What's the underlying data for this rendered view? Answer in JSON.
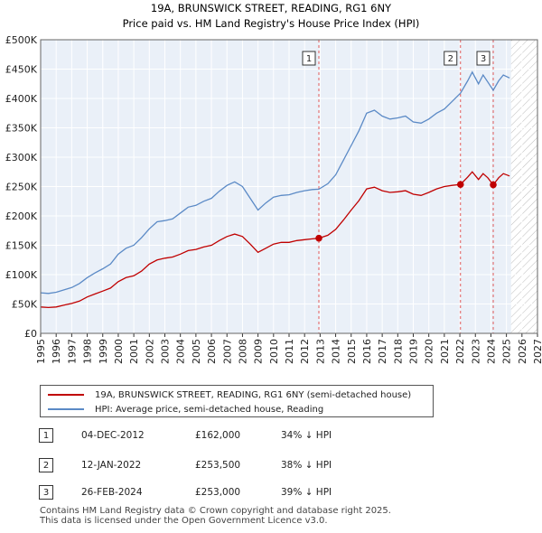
{
  "chart_data": {
    "type": "line",
    "title": "19A, BRUNSWICK STREET, READING, RG1 6NY",
    "subtitle": "Price paid vs. HM Land Registry's House Price Index (HPI)",
    "xlim": [
      1995,
      2027
    ],
    "ylim": [
      0,
      500000
    ],
    "x_ticks": [
      "1995",
      "1996",
      "1997",
      "1998",
      "1999",
      "2000",
      "2001",
      "2002",
      "2003",
      "2004",
      "2005",
      "2006",
      "2007",
      "2008",
      "2009",
      "2010",
      "2011",
      "2012",
      "2013",
      "2014",
      "2015",
      "2016",
      "2017",
      "2018",
      "2019",
      "2020",
      "2021",
      "2022",
      "2023",
      "2024",
      "2025",
      "2026",
      "2027"
    ],
    "y_ticks": [
      {
        "value": 0,
        "label": "£0"
      },
      {
        "value": 50000,
        "label": "£50K"
      },
      {
        "value": 100000,
        "label": "£100K"
      },
      {
        "value": 150000,
        "label": "£150K"
      },
      {
        "value": 200000,
        "label": "£200K"
      },
      {
        "value": 250000,
        "label": "£250K"
      },
      {
        "value": 300000,
        "label": "£300K"
      },
      {
        "value": 350000,
        "label": "£350K"
      },
      {
        "value": 400000,
        "label": "£400K"
      },
      {
        "value": 450000,
        "label": "£450K"
      },
      {
        "value": 500000,
        "label": "£500K"
      }
    ],
    "forecast_start": 2025.3,
    "series": [
      {
        "name": "HPI: Average price, semi-detached house, Reading",
        "color": "#5b8ac6",
        "x": [
          1995.0,
          1995.5,
          1996.0,
          1996.5,
          1997.0,
          1997.5,
          1998.0,
          1998.5,
          1999.0,
          1999.5,
          2000.0,
          2000.5,
          2001.0,
          2001.5,
          2002.0,
          2002.5,
          2003.0,
          2003.5,
          2004.0,
          2004.5,
          2005.0,
          2005.5,
          2006.0,
          2006.5,
          2007.0,
          2007.5,
          2008.0,
          2008.5,
          2009.0,
          2009.5,
          2010.0,
          2010.5,
          2011.0,
          2011.5,
          2012.0,
          2012.5,
          2012.92,
          2013.5,
          2014.0,
          2014.5,
          2015.0,
          2015.5,
          2016.0,
          2016.5,
          2017.0,
          2017.5,
          2018.0,
          2018.5,
          2019.0,
          2019.5,
          2020.0,
          2020.5,
          2021.0,
          2021.5,
          2022.04,
          2022.5,
          2022.8,
          2023.2,
          2023.5,
          2023.8,
          2024.15,
          2024.5,
          2024.8,
          2025.2
        ],
        "values": [
          69000,
          68000,
          70000,
          74000,
          78000,
          85000,
          95000,
          103000,
          110000,
          118000,
          135000,
          145000,
          150000,
          163000,
          178000,
          190000,
          192000,
          195000,
          205000,
          215000,
          218000,
          225000,
          230000,
          242000,
          252000,
          258000,
          250000,
          230000,
          210000,
          222000,
          232000,
          235000,
          236000,
          240000,
          243000,
          245000,
          245500,
          255000,
          270000,
          295000,
          320000,
          345000,
          375000,
          380000,
          370000,
          365000,
          367000,
          370000,
          360000,
          358000,
          365000,
          375000,
          382000,
          395000,
          409000,
          430000,
          445000,
          425000,
          440000,
          428000,
          414000,
          430000,
          440000,
          435000
        ]
      },
      {
        "name": "19A, BRUNSWICK STREET, READING, RG1 6NY (semi-detached house)",
        "color": "#c00000",
        "x": [
          1995.0,
          1995.5,
          1996.0,
          1996.5,
          1997.0,
          1997.5,
          1998.0,
          1998.5,
          1999.0,
          1999.5,
          2000.0,
          2000.5,
          2001.0,
          2001.5,
          2002.0,
          2002.5,
          2003.0,
          2003.5,
          2004.0,
          2004.5,
          2005.0,
          2005.5,
          2006.0,
          2006.5,
          2007.0,
          2007.5,
          2008.0,
          2008.5,
          2009.0,
          2009.5,
          2010.0,
          2010.5,
          2011.0,
          2011.5,
          2012.0,
          2012.5,
          2012.92,
          2013.5,
          2014.0,
          2014.5,
          2015.0,
          2015.5,
          2016.0,
          2016.5,
          2017.0,
          2017.5,
          2018.0,
          2018.5,
          2019.0,
          2019.5,
          2020.0,
          2020.5,
          2021.0,
          2021.5,
          2022.04,
          2022.5,
          2022.8,
          2023.2,
          2023.5,
          2023.8,
          2024.15,
          2024.5,
          2024.8,
          2025.2
        ],
        "values": [
          45000,
          44000,
          45000,
          48000,
          51000,
          55000,
          62000,
          67000,
          72000,
          77000,
          88000,
          95000,
          98000,
          106000,
          118000,
          125000,
          128000,
          130000,
          135000,
          141000,
          143000,
          147000,
          150000,
          158000,
          165000,
          169000,
          165000,
          152000,
          138000,
          145000,
          152000,
          155000,
          155000,
          158000,
          159500,
          161000,
          162000,
          167000,
          177000,
          193000,
          210000,
          226000,
          246000,
          249000,
          243000,
          240000,
          241000,
          243000,
          237000,
          235000,
          240000,
          246000,
          250000,
          252000,
          253500,
          266000,
          275000,
          262000,
          272000,
          265000,
          253000,
          265000,
          272000,
          268000
        ]
      }
    ],
    "transactions": [
      {
        "label": "1",
        "date": "04-DEC-2012",
        "price": "£162,000",
        "hpi": "34% ↓ HPI",
        "x": 2012.92,
        "value": 162000
      },
      {
        "label": "2",
        "date": "12-JAN-2022",
        "price": "£253,500",
        "hpi": "38% ↓ HPI",
        "x": 2022.04,
        "value": 253500
      },
      {
        "label": "3",
        "date": "26-FEB-2024",
        "price": "£253,000",
        "hpi": "39% ↓ HPI",
        "x": 2024.15,
        "value": 253000
      }
    ],
    "legend": [
      {
        "label": "19A, BRUNSWICK STREET, READING, RG1 6NY (semi-detached house)",
        "color": "#c00000"
      },
      {
        "label": "HPI: Average price, semi-detached house, Reading",
        "color": "#5b8ac6"
      }
    ]
  },
  "footer": {
    "line1": "Contains HM Land Registry data © Crown copyright and database right 2025.",
    "line2": "This data is licensed under the Open Government Licence v3.0."
  }
}
